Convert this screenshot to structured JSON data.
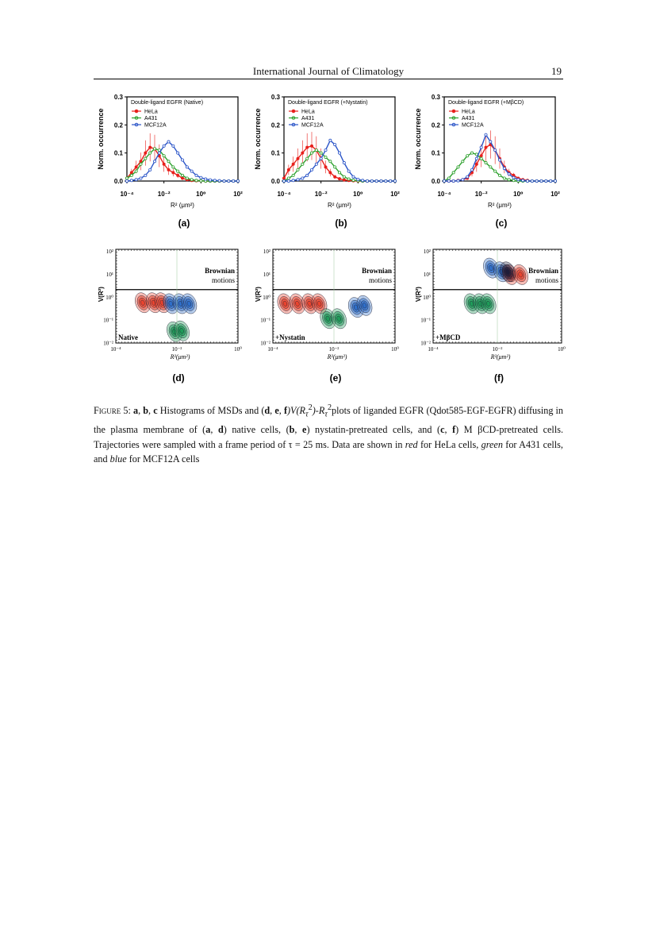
{
  "header": {
    "journal": "International Journal of Climatology",
    "page": "19"
  },
  "figure": {
    "panel_labels": [
      "(a)",
      "(b)",
      "(c)",
      "(d)",
      "(e)",
      "(f)"
    ],
    "histograms": {
      "y_axis_label": "Norm. occurrence",
      "x_axis_label": "R² (μm²)",
      "y_ticks": [
        "0.0",
        "0.1",
        "0.2",
        "0.3"
      ],
      "x_ticks": [
        "10⁻⁴",
        "10⁻²",
        "10⁰",
        "10²"
      ],
      "legend_entries": [
        "HeLa",
        "A431",
        "MCF12A"
      ],
      "series_colors": {
        "HeLa": "#e8201c",
        "A431": "#2ca02c",
        "MCF12A": "#2b55c8"
      },
      "panels": [
        {
          "title": "Double-ligand EGFR (Native)"
        },
        {
          "title": "Double-ligand EGFR (+Nystatin)"
        },
        {
          "title": "Double-ligand EGFR (+MβCD)"
        }
      ]
    },
    "contours": {
      "y_axis_label": "V(R²)",
      "x_axis_label": "R²(μm²)",
      "y_ticks": [
        "10²",
        "10¹",
        "10⁰",
        "10⁻¹",
        "10⁻²"
      ],
      "x_ticks": [
        "10⁻⁴",
        "10⁻²",
        "10⁰"
      ],
      "brownian_line1": "Brownian",
      "brownian_line2": "motions",
      "panels": [
        {
          "condition": "Native"
        },
        {
          "condition": "+Nystatin"
        },
        {
          "condition": "+MβCD"
        }
      ]
    }
  },
  "chart_data": [
    {
      "type": "line",
      "title": "Double-ligand EGFR (Native)",
      "xlabel": "R² (μm²)",
      "ylabel": "Norm. occurrence",
      "xscale": "log",
      "xlim": [
        0.0001,
        100
      ],
      "ylim": [
        0,
        0.3
      ],
      "x": [
        0.0001,
        0.000178,
        0.000316,
        0.000562,
        0.001,
        0.00178,
        0.00316,
        0.00562,
        0.01,
        0.0178,
        0.0316,
        0.0562,
        0.1,
        0.178,
        0.316,
        0.562,
        1,
        1.78,
        3.16,
        5.62,
        10,
        17.8,
        31.6,
        56.2,
        100
      ],
      "series": [
        {
          "name": "HeLa",
          "values": [
            0.01,
            0.03,
            0.05,
            0.07,
            0.1,
            0.12,
            0.115,
            0.09,
            0.06,
            0.04,
            0.03,
            0.02,
            0.01,
            0.005,
            0.002,
            0.001,
            0.001,
            0,
            0,
            0,
            0,
            0,
            0,
            0,
            0
          ]
        },
        {
          "name": "A431",
          "values": [
            0.01,
            0.02,
            0.035,
            0.06,
            0.08,
            0.1,
            0.115,
            0.11,
            0.09,
            0.07,
            0.05,
            0.035,
            0.02,
            0.01,
            0.005,
            0.002,
            0.001,
            0,
            0,
            0,
            0,
            0,
            0,
            0,
            0
          ]
        },
        {
          "name": "MCF12A",
          "values": [
            0,
            0.002,
            0.005,
            0.01,
            0.02,
            0.04,
            0.07,
            0.1,
            0.125,
            0.14,
            0.125,
            0.1,
            0.075,
            0.05,
            0.035,
            0.02,
            0.012,
            0.007,
            0.004,
            0.002,
            0.001,
            0,
            0,
            0,
            0
          ]
        }
      ]
    },
    {
      "type": "line",
      "title": "Double-ligand EGFR (+Nystatin)",
      "xlabel": "R² (μm²)",
      "ylabel": "Norm. occurrence",
      "xscale": "log",
      "xlim": [
        0.0001,
        100
      ],
      "ylim": [
        0,
        0.3
      ],
      "x": [
        0.0001,
        0.000178,
        0.000316,
        0.000562,
        0.001,
        0.00178,
        0.00316,
        0.00562,
        0.01,
        0.0178,
        0.0316,
        0.0562,
        0.1,
        0.178,
        0.316,
        0.562,
        1,
        1.78,
        3.16,
        5.62,
        10,
        17.8,
        31.6,
        56.2,
        100
      ],
      "series": [
        {
          "name": "HeLa",
          "values": [
            0.01,
            0.04,
            0.06,
            0.08,
            0.1,
            0.12,
            0.125,
            0.11,
            0.08,
            0.05,
            0.03,
            0.015,
            0.008,
            0.004,
            0.002,
            0.001,
            0,
            0,
            0,
            0,
            0,
            0,
            0,
            0,
            0
          ]
        },
        {
          "name": "A431",
          "values": [
            0,
            0.01,
            0.02,
            0.04,
            0.06,
            0.08,
            0.1,
            0.11,
            0.1,
            0.085,
            0.07,
            0.05,
            0.03,
            0.015,
            0.007,
            0.003,
            0.001,
            0,
            0,
            0,
            0,
            0,
            0,
            0,
            0
          ]
        },
        {
          "name": "MCF12A",
          "values": [
            0,
            0,
            0.002,
            0.005,
            0.01,
            0.02,
            0.04,
            0.06,
            0.08,
            0.11,
            0.145,
            0.13,
            0.1,
            0.065,
            0.035,
            0.015,
            0.006,
            0.002,
            0,
            0,
            0,
            0,
            0,
            0,
            0
          ]
        }
      ]
    },
    {
      "type": "line",
      "title": "Double-ligand EGFR (+MβCD)",
      "xlabel": "R² (μm²)",
      "ylabel": "Norm. occurrence",
      "xscale": "log",
      "xlim": [
        0.0001,
        100
      ],
      "ylim": [
        0,
        0.3
      ],
      "x": [
        0.0001,
        0.000178,
        0.000316,
        0.000562,
        0.001,
        0.00178,
        0.00316,
        0.00562,
        0.01,
        0.0178,
        0.0316,
        0.0562,
        0.1,
        0.178,
        0.316,
        0.562,
        1,
        1.78,
        3.16,
        5.62,
        10,
        17.8,
        31.6,
        56.2,
        100
      ],
      "series": [
        {
          "name": "HeLa",
          "values": [
            0,
            0,
            0,
            0.002,
            0.005,
            0.01,
            0.03,
            0.06,
            0.09,
            0.12,
            0.13,
            0.11,
            0.08,
            0.05,
            0.03,
            0.02,
            0.01,
            0.005,
            0.002,
            0,
            0,
            0,
            0,
            0,
            0
          ]
        },
        {
          "name": "A431",
          "values": [
            0,
            0.01,
            0.03,
            0.05,
            0.07,
            0.09,
            0.1,
            0.095,
            0.08,
            0.065,
            0.05,
            0.035,
            0.02,
            0.01,
            0.005,
            0.002,
            0,
            0,
            0,
            0,
            0,
            0,
            0,
            0,
            0
          ]
        },
        {
          "name": "MCF12A",
          "values": [
            0,
            0,
            0,
            0.001,
            0.005,
            0.015,
            0.04,
            0.08,
            0.12,
            0.165,
            0.14,
            0.11,
            0.075,
            0.045,
            0.025,
            0.012,
            0.005,
            0.002,
            0,
            0,
            0,
            0,
            0,
            0,
            0
          ]
        }
      ]
    }
  ],
  "caption": {
    "prefix": "Figure 5:",
    "ab": "a",
    "sep1": ", ",
    "bb": "b",
    "sep2": ", ",
    "cb": "c",
    "t1": " Histograms of MSDs and (",
    "db": "d",
    "sep3": ", ",
    "eb": "e",
    "sep4": ", ",
    "fb": "f",
    "t2": ")V(R",
    "t2sub": "τ",
    "t2sup": "2",
    "t3": ")-R",
    "t3sub": "τ",
    "t3sup": "2",
    "t4": "plots of liganded EGFR (Qdot585-EGF-EGFR) diffusing in the plasma membrane of (",
    "a2": "a",
    "sep5": ", ",
    "d2": "d",
    "t5": ") native cells, (",
    "b2": "b",
    "sep6": ", ",
    "e2": "e",
    "t6": ") nystatin-pretreated cells, and (",
    "c2": "c",
    "sep7": ", ",
    "f2": "f",
    "t7": ") M βCD-pretreated cells.  Trajectories were sampled with a frame period of τ = 25 ms.  Data are shown in ",
    "red": "red",
    "t8": " for HeLa cells, ",
    "green": "green",
    "t9": " for A431 cells, and ",
    "blue": "blue",
    "t10": " for MCF12A cells"
  }
}
